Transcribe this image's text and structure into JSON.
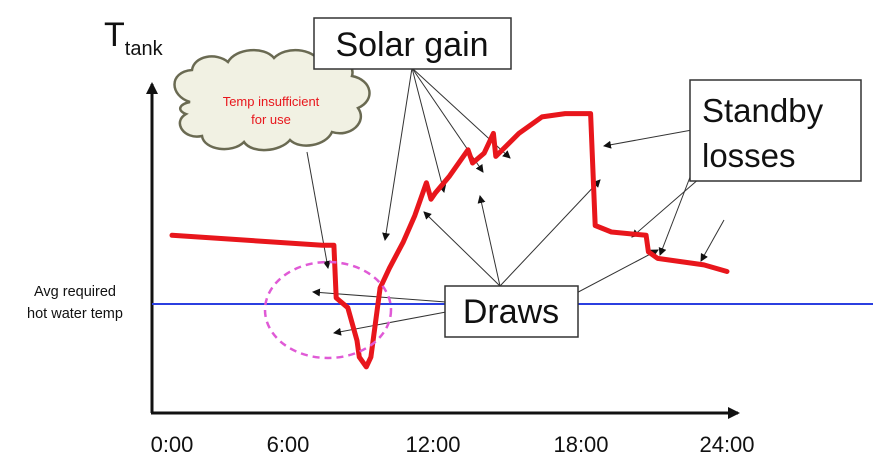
{
  "y_axis": {
    "label_main": "T",
    "label_sub": "tank"
  },
  "x_axis": {
    "ticks": [
      "0:00",
      "6:00",
      "12:00",
      "18:00",
      "24:00"
    ]
  },
  "reference_line": {
    "label_line1": "Avg required",
    "label_line2": "hot water temp",
    "color": "#2b3fe0"
  },
  "callouts": {
    "solar_gain": "Solar gain",
    "standby_line1": "Standby",
    "standby_line2": "losses",
    "draws": "Draws",
    "cloud_line1": "Temp insufficient",
    "cloud_line2": "for use"
  },
  "colors": {
    "curve": "#e8161c",
    "highlight": "#e05ad6",
    "cloud_text": "#e8161c"
  },
  "tank_temperature_curve": {
    "series_name": "",
    "hours": [
      0,
      6.5,
      7.0,
      7.1,
      7.6,
      8.0,
      8.1,
      8.4,
      8.6,
      9.0,
      9.4,
      10.0,
      10.5,
      11.0,
      11.2,
      11.4,
      12.0,
      12.8,
      13.0,
      13.5,
      13.9,
      14.0,
      15.0,
      16.0,
      17.0,
      18.1,
      18.3,
      19.0,
      20.5,
      20.6,
      21.0,
      23.0,
      24.0
    ],
    "relative_temp": [
      0.54,
      0.51,
      0.51,
      0.35,
      0.32,
      0.22,
      0.17,
      0.14,
      0.17,
      0.38,
      0.44,
      0.52,
      0.6,
      0.7,
      0.65,
      0.67,
      0.72,
      0.8,
      0.76,
      0.79,
      0.85,
      0.78,
      0.85,
      0.9,
      0.91,
      0.91,
      0.57,
      0.55,
      0.54,
      0.49,
      0.47,
      0.45,
      0.43
    ]
  }
}
